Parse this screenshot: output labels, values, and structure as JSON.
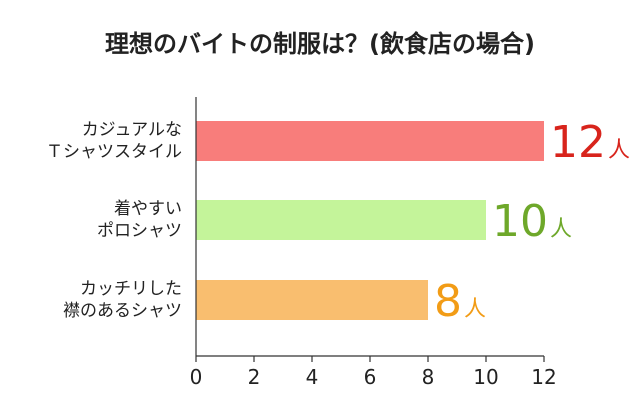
{
  "chart_data": {
    "type": "bar",
    "orientation": "horizontal",
    "title": "理想のバイトの制服は？(飲食店の場合)",
    "categories": [
      [
        "カジュアルな",
        "Ｔシャツスタイル"
      ],
      [
        "着やすい",
        "ポロシャツ"
      ],
      [
        "カッチリした",
        "襟のあるシャツ"
      ]
    ],
    "values": [
      12,
      10,
      8
    ],
    "value_unit": "人",
    "bar_colors": [
      "#f87d7b",
      "#c4f49a",
      "#f9be6f"
    ],
    "label_colors": [
      "#d8241c",
      "#6ea82a",
      "#f29c16"
    ],
    "xlim": [
      0,
      12
    ],
    "xticks": [
      "0",
      "2",
      "4",
      "6",
      "8",
      "10",
      "12"
    ],
    "grid": false,
    "legend": "none"
  }
}
